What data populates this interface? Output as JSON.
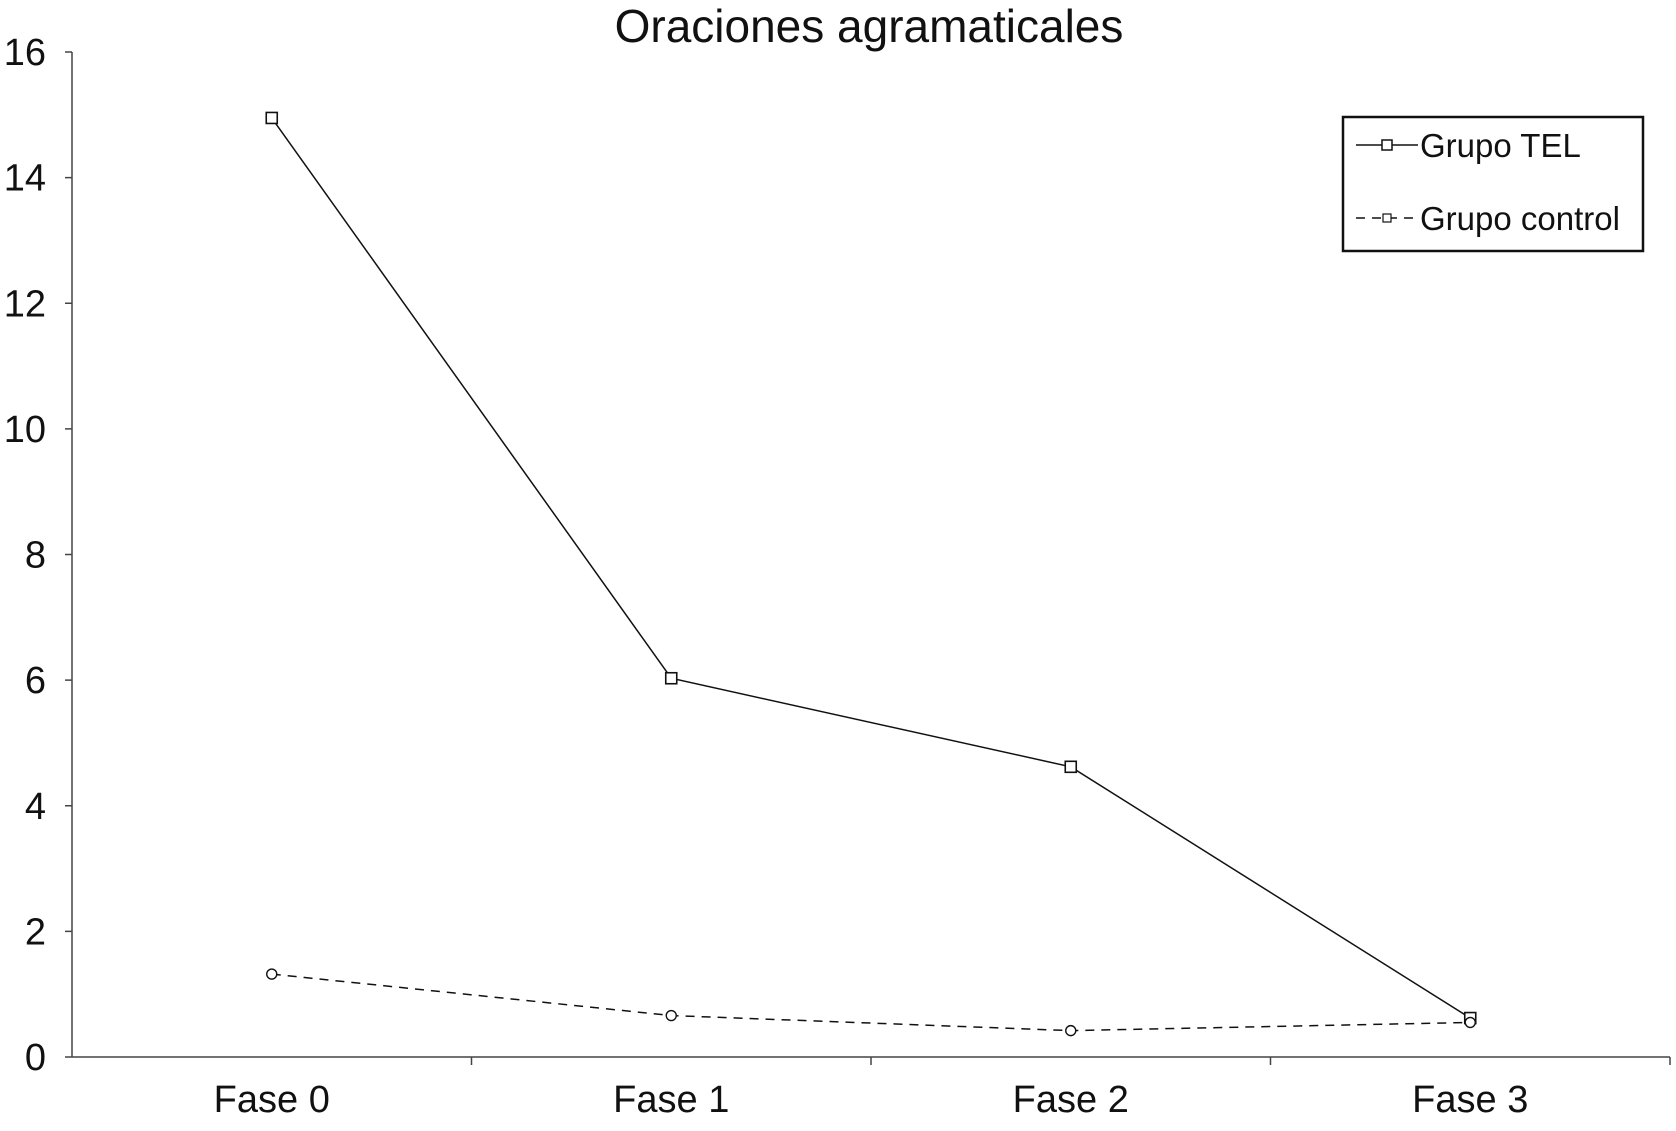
{
  "chart_data": {
    "type": "line",
    "title": "Oraciones agramaticales",
    "xlabel": "",
    "ylabel": "",
    "categories": [
      "Fase 0",
      "Fase 1",
      "Fase 2",
      "Fase 3"
    ],
    "ylim": [
      0,
      16
    ],
    "yticks": [
      "0",
      "2",
      "4",
      "6",
      "8",
      "10",
      "12",
      "14",
      "16"
    ],
    "grid": false,
    "legend_position": "top-right",
    "series": [
      {
        "name": "Grupo TEL",
        "values": [
          14.95,
          6.03,
          4.62,
          0.62
        ],
        "line_style": "solid",
        "marker": "square",
        "color": "#111111"
      },
      {
        "name": "Grupo control",
        "values": [
          1.32,
          0.66,
          0.42,
          0.55
        ],
        "line_style": "dashed",
        "marker": "circle",
        "color": "#111111"
      }
    ]
  }
}
